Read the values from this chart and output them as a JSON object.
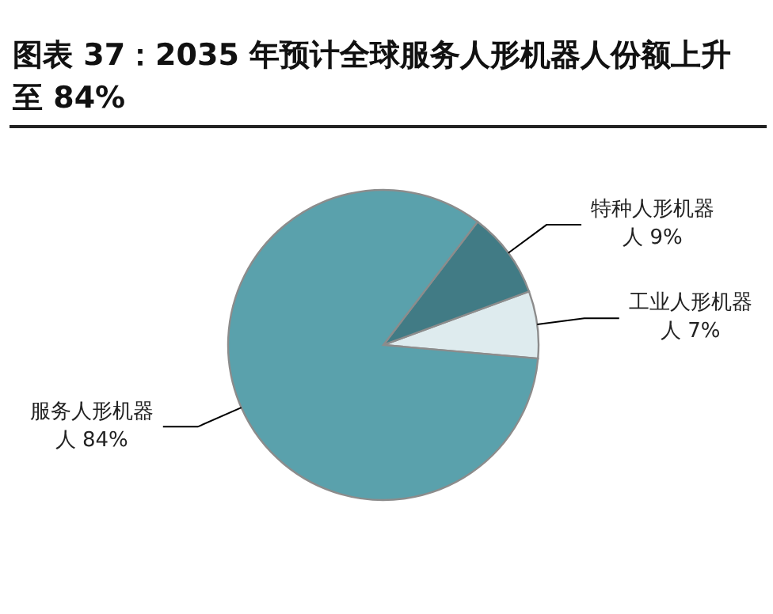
{
  "chart_data": {
    "type": "pie",
    "title": "图表 37：2035 年预计全球服务人形机器人份额上升至 84%",
    "categories": [
      "工业人形机器人",
      "特种人形机器人",
      "服务人形机器人"
    ],
    "values": [
      7,
      9,
      84
    ],
    "value_labels": [
      "7%",
      "9%",
      "84%"
    ],
    "colors": [
      "#deebee",
      "#417b85",
      "#5aa1ac"
    ]
  }
}
